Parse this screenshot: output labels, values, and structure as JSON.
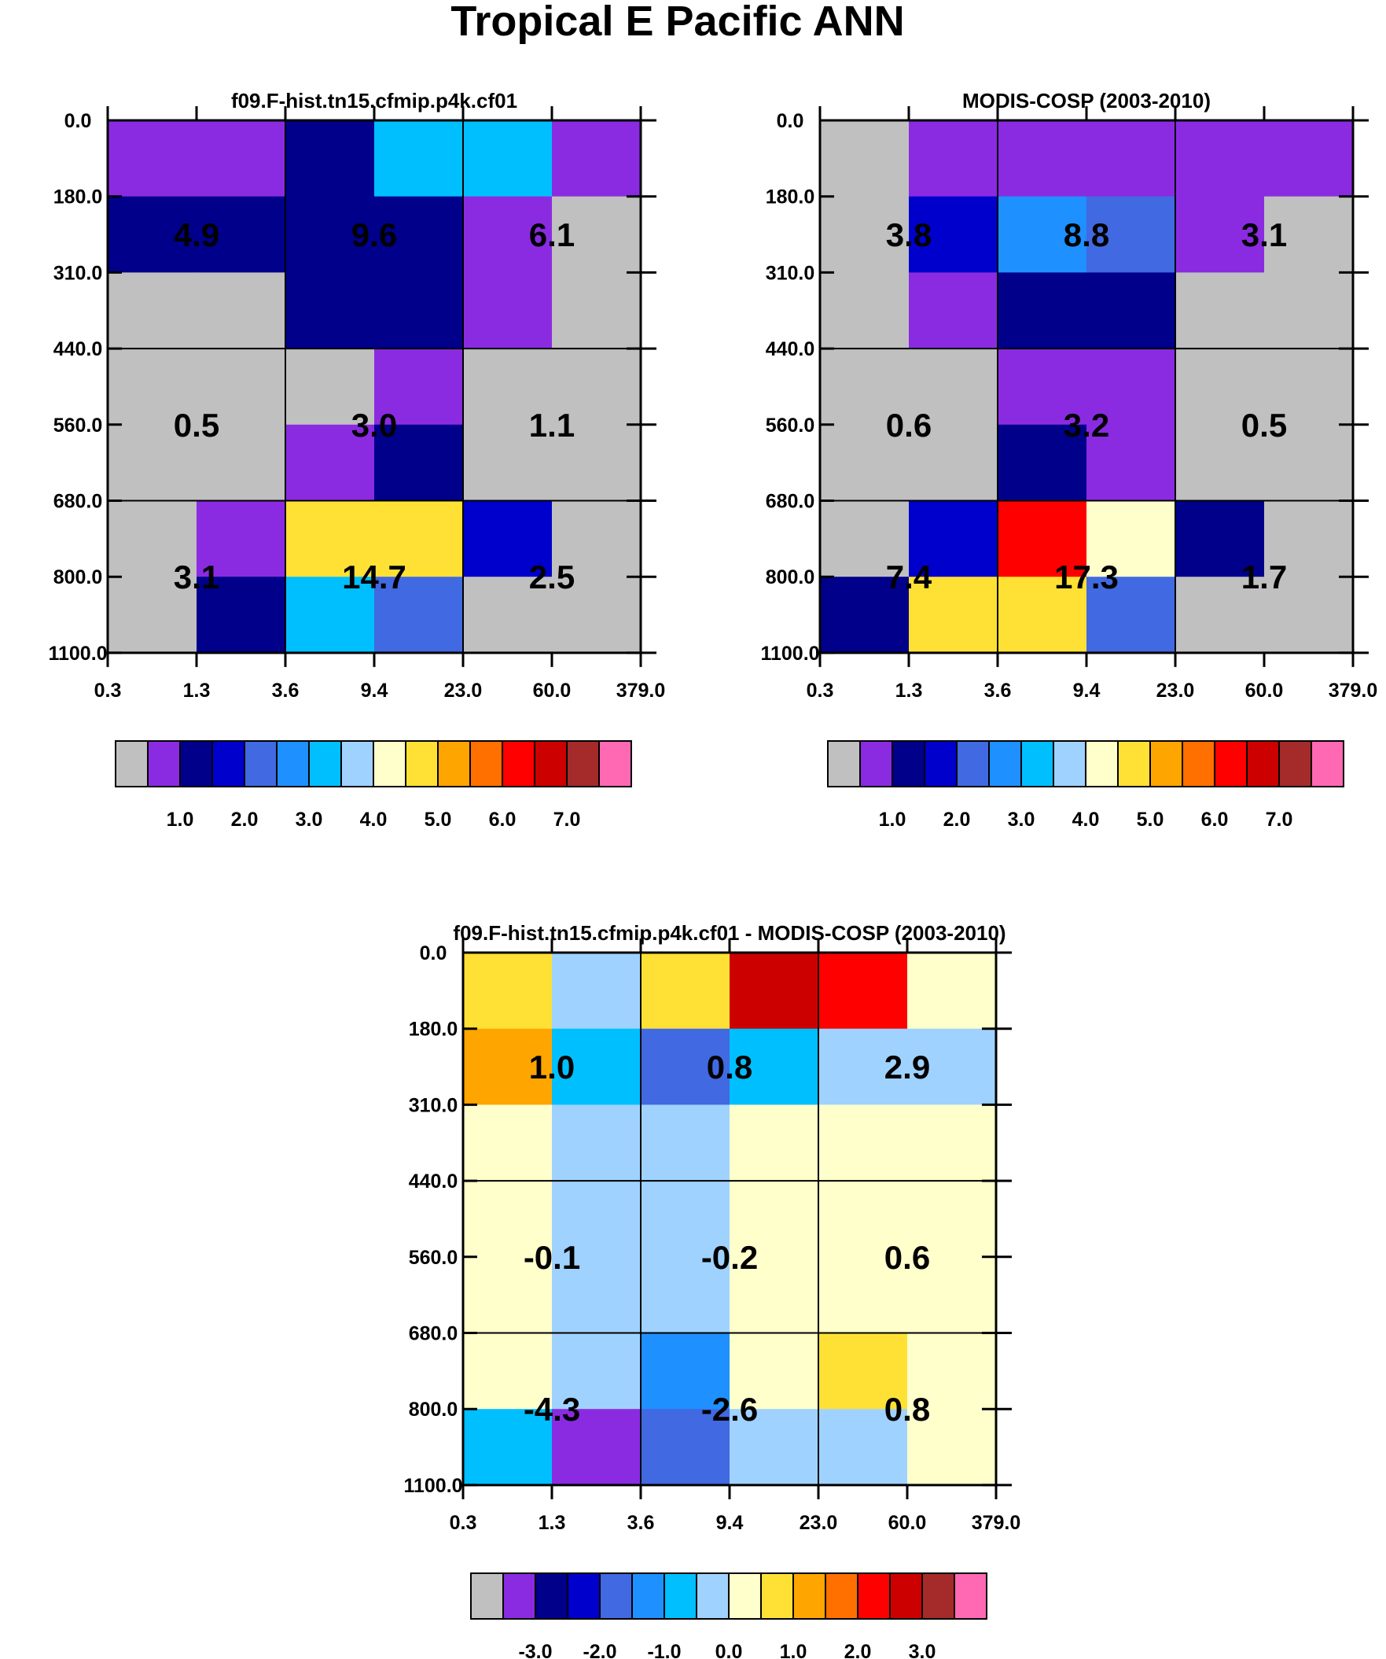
{
  "figure": {
    "title": "Tropical E Pacific ANN"
  },
  "colors": [
    "#c0c0c0",
    "#8a2be2",
    "#00008b",
    "#0000cd",
    "#4169e1",
    "#1e90ff",
    "#00bfff",
    "#a0d2ff",
    "#ffffcc",
    "#ffe135",
    "#ffa500",
    "#ff7000",
    "#ff0000",
    "#cd0000",
    "#a52a2a",
    "#ff69b4"
  ],
  "chart_data": [
    {
      "type": "heatmap",
      "title": "f09.F-hist.tn15.cfmip.p4k.cf01",
      "x_ticks": [
        "0.3",
        "1.3",
        "3.6",
        "9.4",
        "23.0",
        "60.0",
        "379.0"
      ],
      "y_ticks": [
        "0.0",
        "180.0",
        "310.0",
        "440.0",
        "560.0",
        "680.0",
        "800.0",
        "1100.0"
      ],
      "cells": [
        [
          1,
          1,
          2,
          6,
          6,
          1
        ],
        [
          2,
          2,
          2,
          2,
          1,
          0
        ],
        [
          0,
          0,
          2,
          2,
          1,
          0
        ],
        [
          0,
          0,
          0,
          1,
          0,
          0
        ],
        [
          0,
          0,
          1,
          2,
          0,
          0
        ],
        [
          0,
          1,
          9,
          9,
          3,
          0
        ],
        [
          0,
          2,
          6,
          4,
          0,
          0
        ]
      ],
      "annotations": [
        [
          "4.9",
          "9.6",
          "6.1"
        ],
        [
          "0.5",
          "3.0",
          "1.1"
        ],
        [
          "3.1",
          "14.7",
          "2.5"
        ]
      ],
      "colorbar": {
        "labels": [
          "1.0",
          "2.0",
          "3.0",
          "4.0",
          "5.0",
          "6.0",
          "7.0"
        ]
      },
      "grid": true
    },
    {
      "type": "heatmap",
      "title": "MODIS-COSP (2003-2010)",
      "x_ticks": [
        "0.3",
        "1.3",
        "3.6",
        "9.4",
        "23.0",
        "60.0",
        "379.0"
      ],
      "y_ticks": [
        "0.0",
        "180.0",
        "310.0",
        "440.0",
        "560.0",
        "680.0",
        "800.0",
        "1100.0"
      ],
      "cells": [
        [
          0,
          1,
          1,
          1,
          1,
          1
        ],
        [
          0,
          3,
          5,
          4,
          1,
          0
        ],
        [
          0,
          1,
          2,
          2,
          0,
          0
        ],
        [
          0,
          0,
          1,
          1,
          0,
          0
        ],
        [
          0,
          0,
          2,
          1,
          0,
          0
        ],
        [
          0,
          3,
          12,
          8,
          2,
          0
        ],
        [
          2,
          9,
          9,
          4,
          0,
          0
        ]
      ],
      "annotations": [
        [
          "3.8",
          "8.8",
          "3.1"
        ],
        [
          "0.6",
          "3.2",
          "0.5"
        ],
        [
          "7.4",
          "17.3",
          "1.7"
        ]
      ],
      "colorbar": {
        "labels": [
          "1.0",
          "2.0",
          "3.0",
          "4.0",
          "5.0",
          "6.0",
          "7.0"
        ]
      },
      "grid": true
    },
    {
      "type": "heatmap",
      "title": "f09.F-hist.tn15.cfmip.p4k.cf01 - MODIS-COSP (2003-2010)",
      "x_ticks": [
        "0.3",
        "1.3",
        "3.6",
        "9.4",
        "23.0",
        "60.0",
        "379.0"
      ],
      "y_ticks": [
        "0.0",
        "180.0",
        "310.0",
        "440.0",
        "560.0",
        "680.0",
        "800.0",
        "1100.0"
      ],
      "cells": [
        [
          9,
          7,
          9,
          13,
          12,
          8
        ],
        [
          10,
          6,
          4,
          6,
          7,
          7
        ],
        [
          8,
          7,
          7,
          8,
          8,
          8
        ],
        [
          8,
          7,
          7,
          8,
          8,
          8
        ],
        [
          8,
          7,
          7,
          8,
          8,
          8
        ],
        [
          8,
          7,
          5,
          8,
          9,
          8
        ],
        [
          6,
          1,
          4,
          7,
          7,
          8
        ]
      ],
      "annotations": [
        [
          "1.0",
          "0.8",
          "2.9"
        ],
        [
          "-0.1",
          "-0.2",
          "0.6"
        ],
        [
          "-4.3",
          "-2.6",
          "0.8"
        ]
      ],
      "colorbar": {
        "labels": [
          "-3.0",
          "-2.0",
          "-1.0",
          "0.0",
          "1.0",
          "2.0",
          "3.0"
        ]
      },
      "grid": true
    }
  ]
}
